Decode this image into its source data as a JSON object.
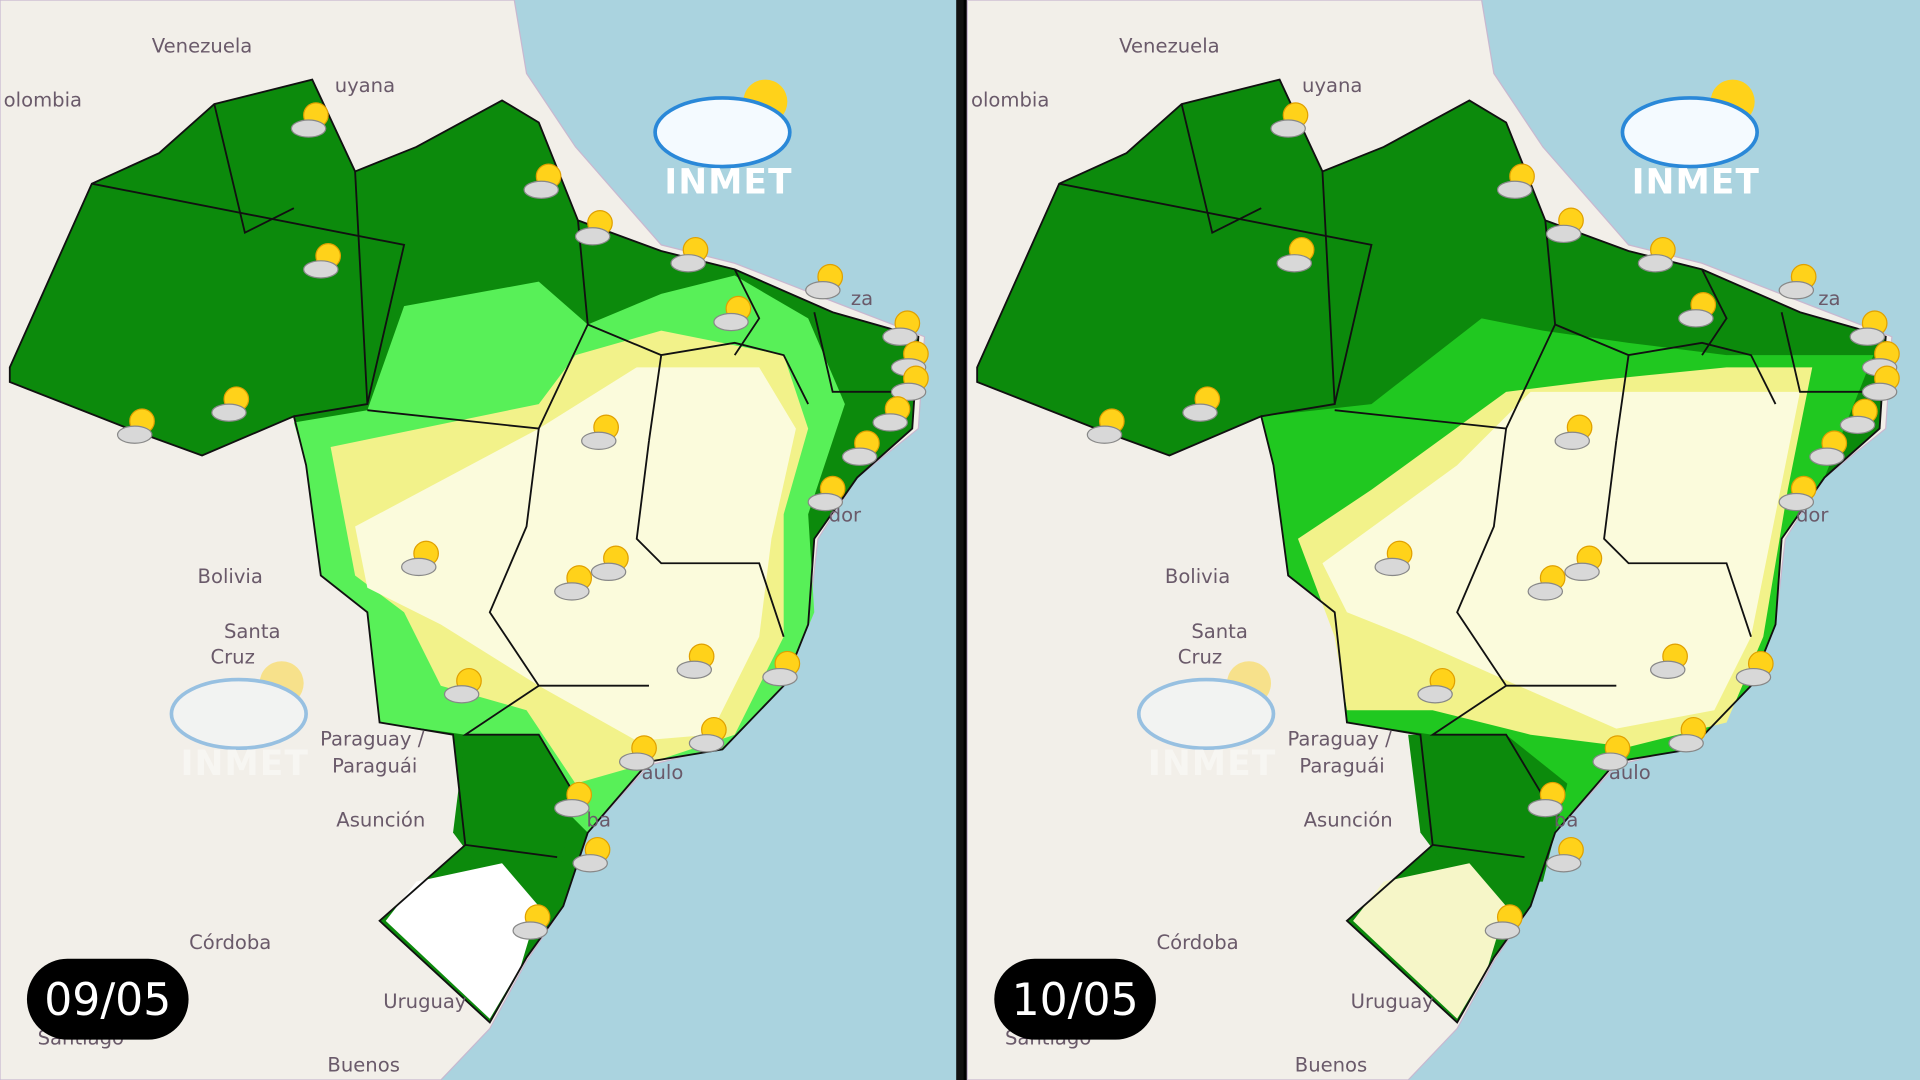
{
  "logo": "INMET",
  "places": [
    "Venezuela",
    "olombia",
    "uyana",
    "Bolivia",
    "Santa",
    "Cruz",
    "Paraguay /",
    "Paraguái",
    "Asunción",
    "Córdoba",
    "Uruguay",
    "Santiago",
    "Buenos",
    "dor",
    "aulo",
    "za",
    "ba"
  ],
  "panels": [
    {
      "date": "09/05"
    },
    {
      "date": "10/05"
    }
  ]
}
